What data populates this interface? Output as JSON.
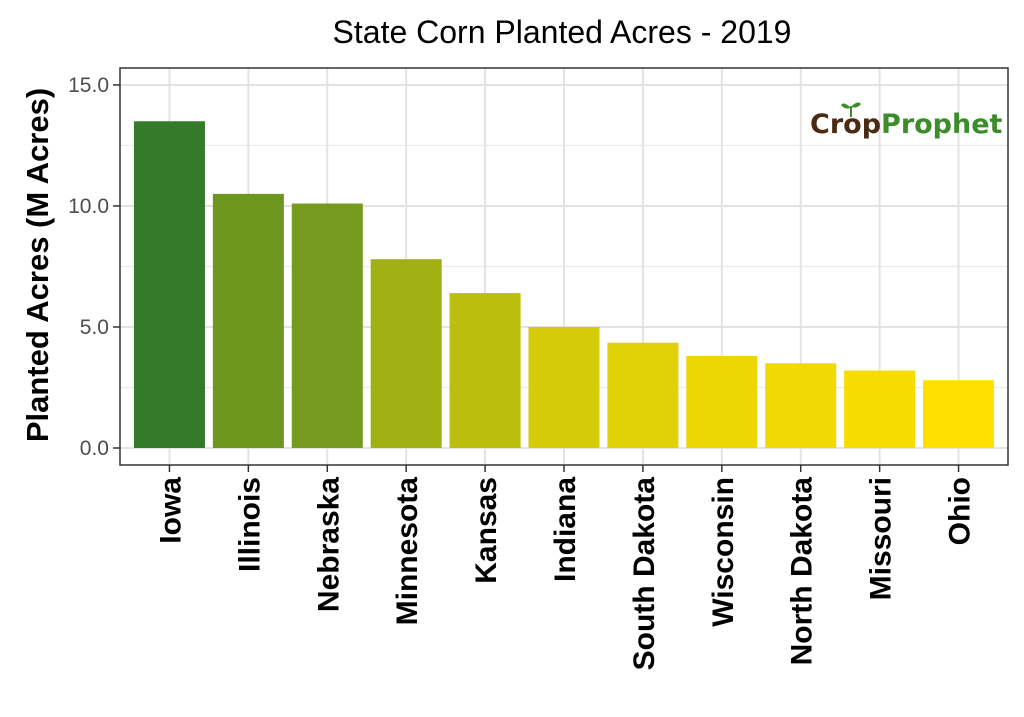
{
  "chart_data": {
    "type": "bar",
    "title": "State Corn Planted Acres - 2019",
    "xlabel": "",
    "ylabel": "Planted Acres (M Acres)",
    "ylim": [
      0,
      15.7
    ],
    "yticks": [
      0,
      5,
      10,
      15
    ],
    "ytick_labels": [
      "0.0",
      "5.0",
      "10.0",
      "15.0"
    ],
    "grid": true,
    "categories": [
      "Iowa",
      "Illinois",
      "Nebraska",
      "Minnesota",
      "Kansas",
      "Indiana",
      "South Dakota",
      "Wisconsin",
      "North Dakota",
      "Missouri",
      "Ohio"
    ],
    "values": [
      13.5,
      10.5,
      10.1,
      7.8,
      6.4,
      5.0,
      4.35,
      3.8,
      3.5,
      3.2,
      2.8
    ],
    "colors": {
      "high": "#357a2b",
      "low": "#ffe000"
    }
  },
  "logo": {
    "part1": "Cr",
    "part2": "p",
    "part3": "Prophet",
    "color_dark": "#4a2a12",
    "color_green": "#3d8c2a"
  }
}
